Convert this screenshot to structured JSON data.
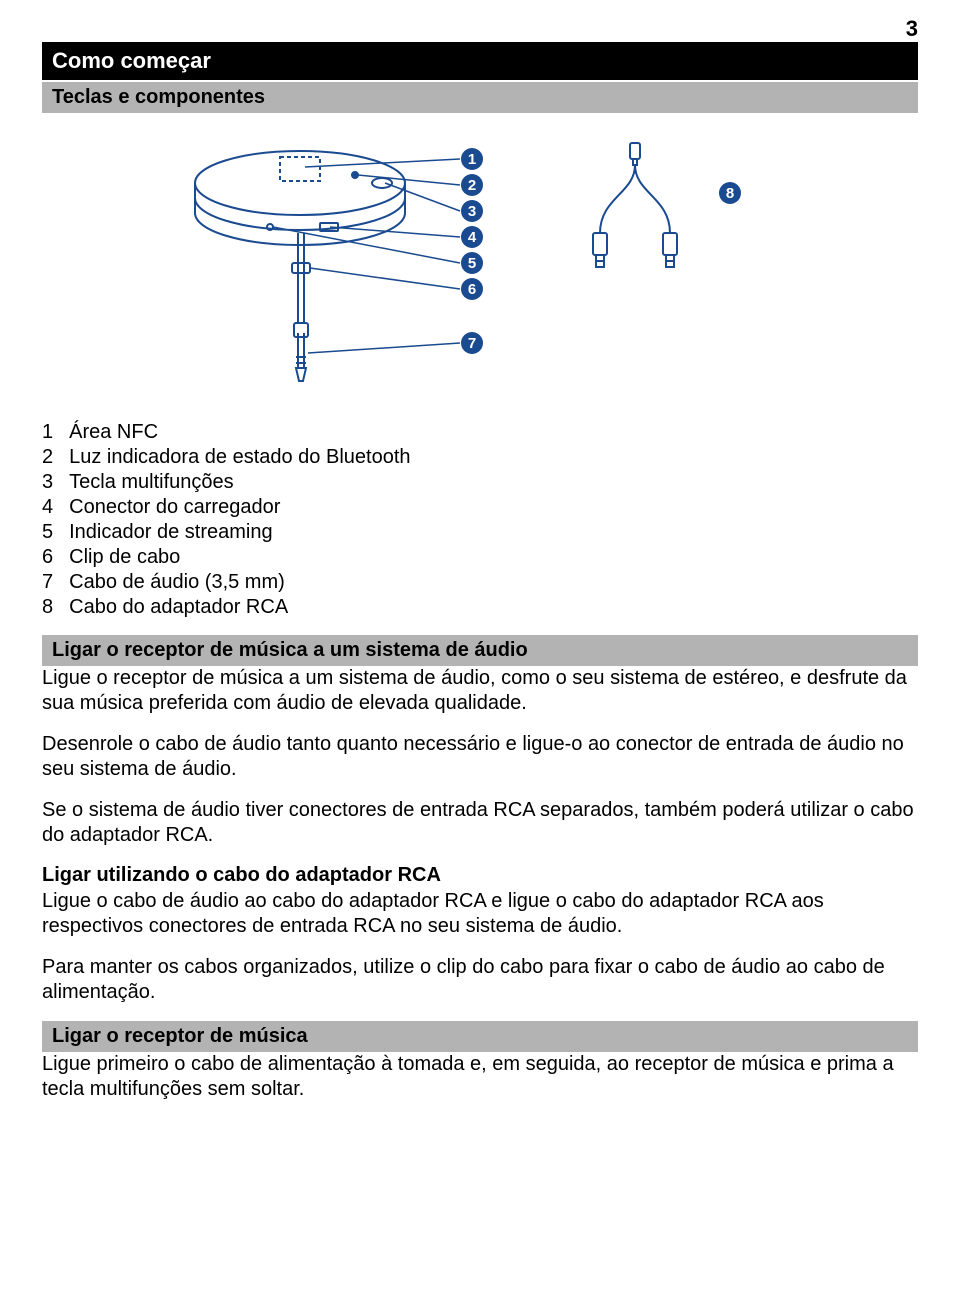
{
  "page": {
    "number": "3"
  },
  "h1": "Como começar",
  "h2a": "Teclas e componentes",
  "diagram": {
    "stroke": "#1a4a8f",
    "stroke_width": 2,
    "callout_fill": "#1a4a8f",
    "callout_text": "#ffffff",
    "callout_radius": 11,
    "callout_fontsize": 15,
    "labels": [
      "1",
      "2",
      "3",
      "4",
      "5",
      "6",
      "7",
      "8"
    ]
  },
  "parts": [
    {
      "num": "1",
      "label": "Área NFC"
    },
    {
      "num": "2",
      "label": "Luz indicadora de estado do Bluetooth"
    },
    {
      "num": "3",
      "label": "Tecla multifunções"
    },
    {
      "num": "4",
      "label": "Conector do carregador"
    },
    {
      "num": "5",
      "label": "Indicador de streaming"
    },
    {
      "num": "6",
      "label": "Clip de cabo"
    },
    {
      "num": "7",
      "label": "Cabo de áudio (3,5 mm)"
    },
    {
      "num": "8",
      "label": "Cabo do adaptador RCA"
    }
  ],
  "h2b": "Ligar o receptor de música a um sistema de áudio",
  "p1": "Ligue o receptor de música a um sistema de áudio, como o seu sistema de estéreo, e desfrute da sua música preferida com áudio de elevada qualidade.",
  "p2": "Desenrole o cabo de áudio tanto quanto necessário e ligue-o ao conector de entrada de áudio no seu sistema de áudio.",
  "p3": "Se o sistema de áudio tiver conectores de entrada RCA separados, também poderá utilizar o cabo do adaptador RCA.",
  "h3": "Ligar utilizando o cabo do adaptador RCA",
  "p4": "Ligue o cabo de áudio ao cabo do adaptador RCA e ligue o cabo do adaptador RCA aos respectivos conectores de entrada RCA no seu sistema de áudio.",
  "p5": "Para manter os cabos organizados, utilize o clip do cabo para fixar o cabo de áudio ao cabo de alimentação.",
  "h2c": "Ligar o receptor de música",
  "p6": "Ligue primeiro o cabo de alimentação à tomada e, em seguida, ao receptor de música e prima a tecla multifunções sem soltar."
}
